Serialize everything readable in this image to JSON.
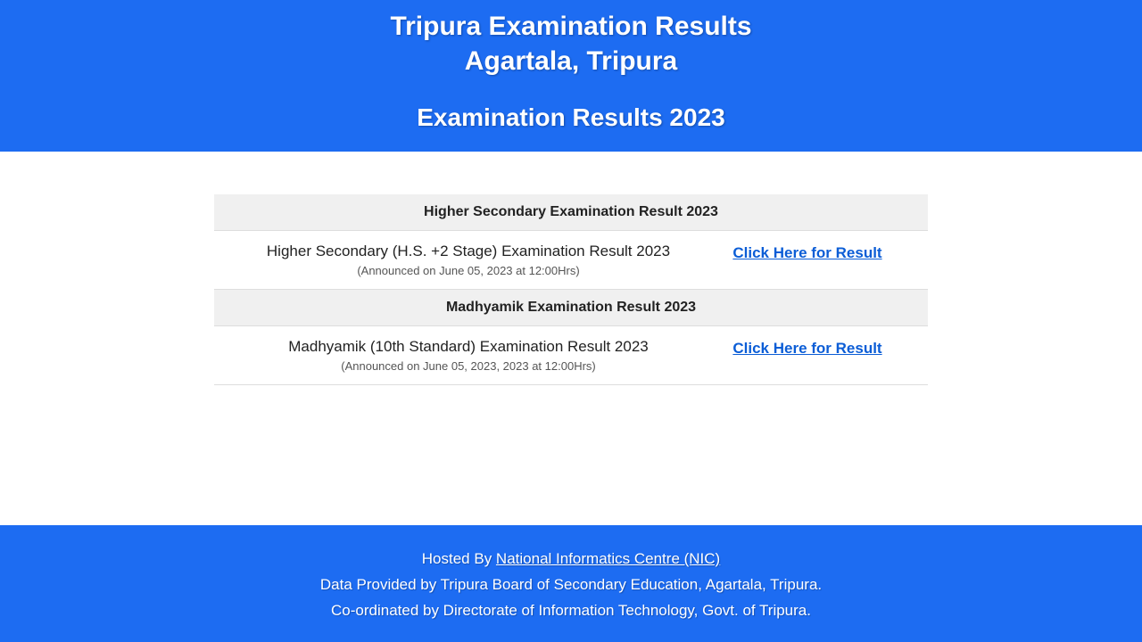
{
  "header": {
    "title_line1": "Tripura Examination Results",
    "title_line2": "Agartala, Tripura",
    "subtitle": "Examination Results 2023"
  },
  "sections": {
    "hs": {
      "header": "Higher Secondary Examination Result 2023",
      "result_title": "Higher Secondary (H.S. +2 Stage) Examination Result 2023",
      "result_date": "(Announced on June 05, 2023 at 12:00Hrs)",
      "link_text": "Click Here for Result"
    },
    "madhyamik": {
      "header": "Madhyamik Examination Result 2023",
      "result_title": "Madhyamik (10th Standard) Examination Result 2023",
      "result_date": "(Announced on June 05, 2023, 2023 at 12:00Hrs)",
      "link_text": "Click Here for Result"
    }
  },
  "footer": {
    "hosted_by_prefix": "Hosted By ",
    "hosted_by_link": "National Informatics Centre (NIC)",
    "data_provided": "Data Provided by Tripura Board of Secondary Education, Agartala, Tripura.",
    "coordinated": "Co-ordinated by Directorate of Information Technology, Govt. of Tripura."
  },
  "colors": {
    "primary_blue": "#1d6cf2",
    "link_blue": "#0b5dd6",
    "section_bg": "#f0f0f0",
    "border": "#dddddd"
  }
}
